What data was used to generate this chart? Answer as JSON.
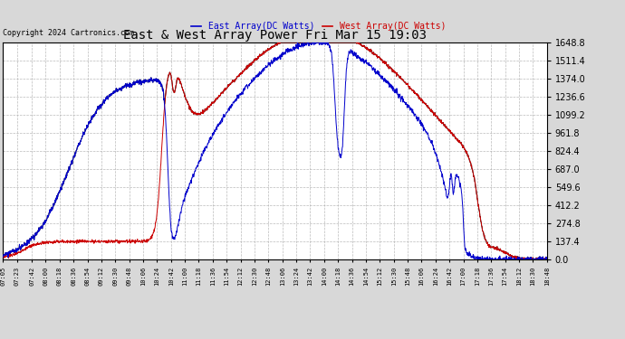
{
  "title": "East & West Array Power Fri Mar 15 19:03",
  "copyright": "Copyright 2024 Cartronics.com",
  "legend_east": "East Array(DC Watts)",
  "legend_west": "West Array(DC Watts)",
  "east_color": "#0000cc",
  "west_color": "#cc0000",
  "black_color": "#000000",
  "bg_color": "#d8d8d8",
  "plot_bg_color": "#ffffff",
  "grid_color": "#aaaaaa",
  "ymin": 0.0,
  "ymax": 1648.8,
  "ytick_interval": 137.4,
  "x_labels": [
    "07:05",
    "07:23",
    "07:42",
    "08:00",
    "08:18",
    "08:36",
    "08:54",
    "09:12",
    "09:30",
    "09:48",
    "10:06",
    "10:24",
    "10:42",
    "11:00",
    "11:18",
    "11:36",
    "11:54",
    "12:12",
    "12:30",
    "12:48",
    "13:06",
    "13:24",
    "13:42",
    "14:00",
    "14:18",
    "14:36",
    "14:54",
    "15:12",
    "15:30",
    "15:48",
    "16:06",
    "16:24",
    "16:42",
    "17:00",
    "17:18",
    "17:36",
    "17:54",
    "18:12",
    "18:30",
    "18:48"
  ]
}
